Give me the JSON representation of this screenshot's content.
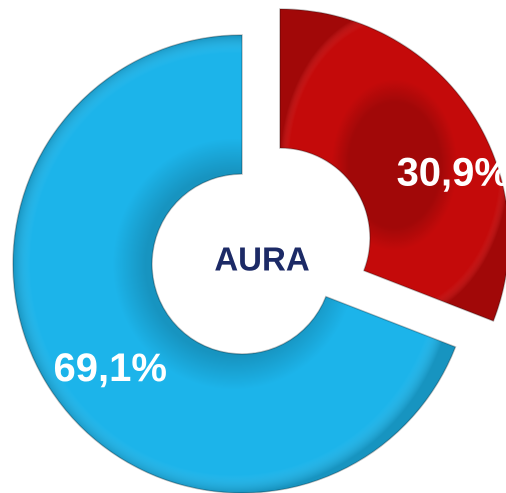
{
  "chart_data": {
    "type": "donut",
    "center_label": "AURA",
    "categories": [
      null,
      null
    ],
    "values": [
      30.9,
      69.1
    ],
    "value_labels": [
      "30,9%",
      "69,1%"
    ],
    "colors": [
      "#c40a0a",
      "#1cb4ea"
    ]
  }
}
